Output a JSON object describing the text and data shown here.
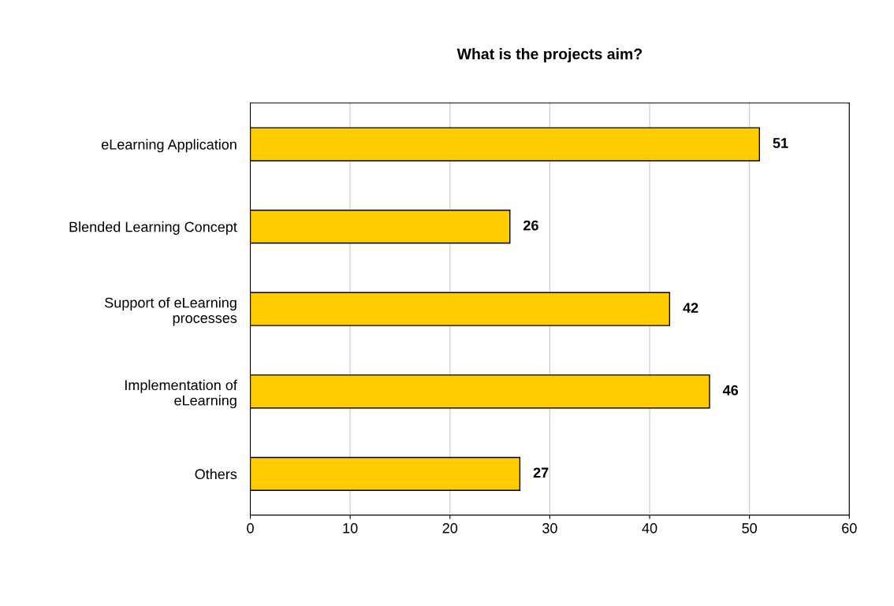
{
  "chart_data": {
    "type": "bar",
    "orientation": "horizontal",
    "title": "What is the projects aim?",
    "categories": [
      "eLearning Application",
      "Blended Learning Concept",
      "Support of eLearning\nprocesses",
      "Implementation of\neLearning",
      "Others"
    ],
    "values": [
      51,
      26,
      42,
      46,
      27
    ],
    "color": "#ffcc00",
    "xlim": [
      0,
      60
    ],
    "xticks": [
      0,
      10,
      20,
      30,
      40,
      50,
      60
    ],
    "grid": "x",
    "data_labels": true,
    "legend": false
  }
}
